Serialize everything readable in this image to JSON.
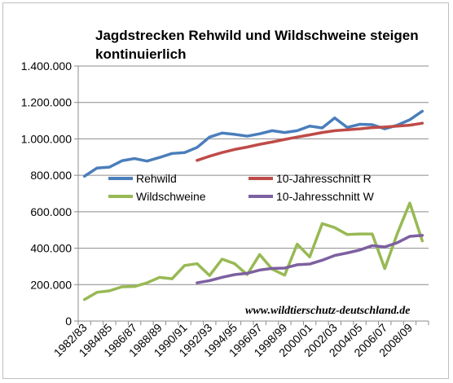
{
  "chart_data": {
    "type": "line",
    "title_lines": [
      "Jagdstrecken Rehwild und Wildschweine steigen",
      "kontinuierlich"
    ],
    "source_text": "www.wildtierschutz-deutschland.de",
    "ylim": [
      0,
      1400000
    ],
    "yticks": [
      0,
      200000,
      400000,
      600000,
      800000,
      1000000,
      1200000,
      1400000
    ],
    "ytick_labels": [
      "0",
      "200.000",
      "400.000",
      "600.000",
      "800.000",
      "1.000.000",
      "1.200.000",
      "1.400.000"
    ],
    "x": [
      "1982/83",
      "1983/84",
      "1984/85",
      "1985/86",
      "1986/87",
      "1987/88",
      "1988/89",
      "1989/90",
      "1990/91",
      "1991/92",
      "1992/93",
      "1993/94",
      "1994/95",
      "1995/96",
      "1996/97",
      "1997/98",
      "1998/99",
      "1999/00",
      "2000/01",
      "2001/02",
      "2002/03",
      "2003/04",
      "2004/05",
      "2005/06",
      "2006/07",
      "2007/08",
      "2008/09",
      "2009/10"
    ],
    "xtick_labels": [
      "1982/83",
      "1984/85",
      "1986/87",
      "1988/89",
      "1990/91",
      "1992/93",
      "1994/95",
      "1996/97",
      "1998/99",
      "2000/01",
      "2002/03",
      "2004/05",
      "2006/07",
      "2008/09"
    ],
    "grid": true,
    "legend_placement": "center",
    "series": [
      {
        "name": "Rehwild",
        "color": "#4a7ebb",
        "values": [
          795000,
          840000,
          845000,
          880000,
          892000,
          878000,
          898000,
          920000,
          925000,
          953000,
          1010000,
          1032000,
          1025000,
          1015000,
          1028000,
          1045000,
          1035000,
          1045000,
          1070000,
          1060000,
          1115000,
          1063000,
          1080000,
          1078000,
          1055000,
          1075000,
          1105000,
          1152000
        ]
      },
      {
        "name": "10-Jahresschnitt R",
        "color": "#be4b48",
        "values": [
          null,
          null,
          null,
          null,
          null,
          null,
          null,
          null,
          null,
          882000,
          905000,
          925000,
          942000,
          955000,
          970000,
          983000,
          997000,
          1010000,
          1022000,
          1035000,
          1045000,
          1050000,
          1055000,
          1062000,
          1065000,
          1070000,
          1075000,
          1086000
        ]
      },
      {
        "name": "Wildschweine",
        "color": "#98b954",
        "values": [
          118000,
          158000,
          166000,
          188000,
          190000,
          210000,
          240000,
          232000,
          305000,
          315000,
          250000,
          340000,
          315000,
          255000,
          365000,
          285000,
          252000,
          422000,
          352000,
          535000,
          513000,
          475000,
          478000,
          478000,
          288000,
          480000,
          648000,
          440000
        ]
      },
      {
        "name": "10-Jahresschnitt W",
        "color": "#7d60a0",
        "values": [
          null,
          null,
          null,
          null,
          null,
          null,
          null,
          null,
          null,
          210000,
          222000,
          240000,
          255000,
          262000,
          280000,
          289000,
          291000,
          309000,
          313000,
          334000,
          360000,
          374000,
          390000,
          414000,
          407000,
          430000,
          465000,
          470000
        ]
      }
    ]
  }
}
